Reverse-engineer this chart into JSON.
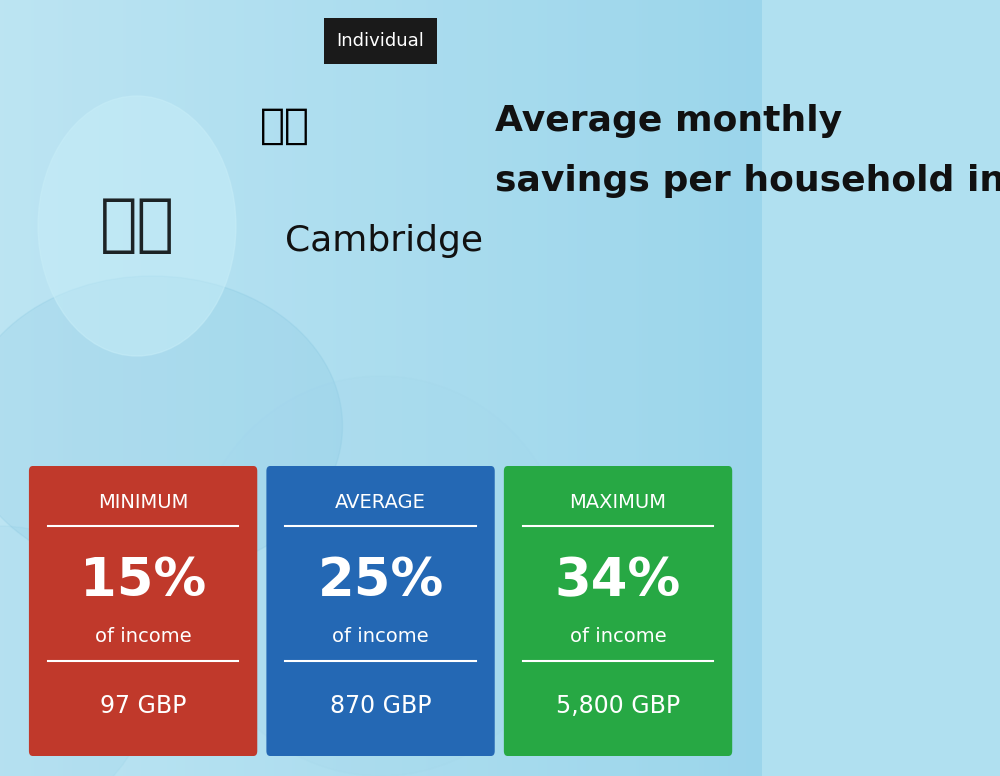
{
  "title_tag": "Individual",
  "title_line1": "Average monthly",
  "title_line2": "savings per household in",
  "title_line3": "Cambridge",
  "bg_color_top": "#a8d8ea",
  "bg_color": "#b0e0f0",
  "cards": [
    {
      "label": "MINIMUM",
      "percent": "15%",
      "sub": "of income",
      "amount": "97 GBP",
      "color": "#c0392b"
    },
    {
      "label": "AVERAGE",
      "percent": "25%",
      "sub": "of income",
      "amount": "870 GBP",
      "color": "#2468b4"
    },
    {
      "label": "MAXIMUM",
      "percent": "34%",
      "sub": "of income",
      "amount": "5,800 GBP",
      "color": "#27a844"
    }
  ],
  "tag_bg": "#1a1a1a",
  "tag_text": "Individual",
  "tag_text_color": "#ffffff",
  "card_text_color": "#ffffff",
  "title_bold_color": "#111111",
  "title_normal_color": "#333333"
}
